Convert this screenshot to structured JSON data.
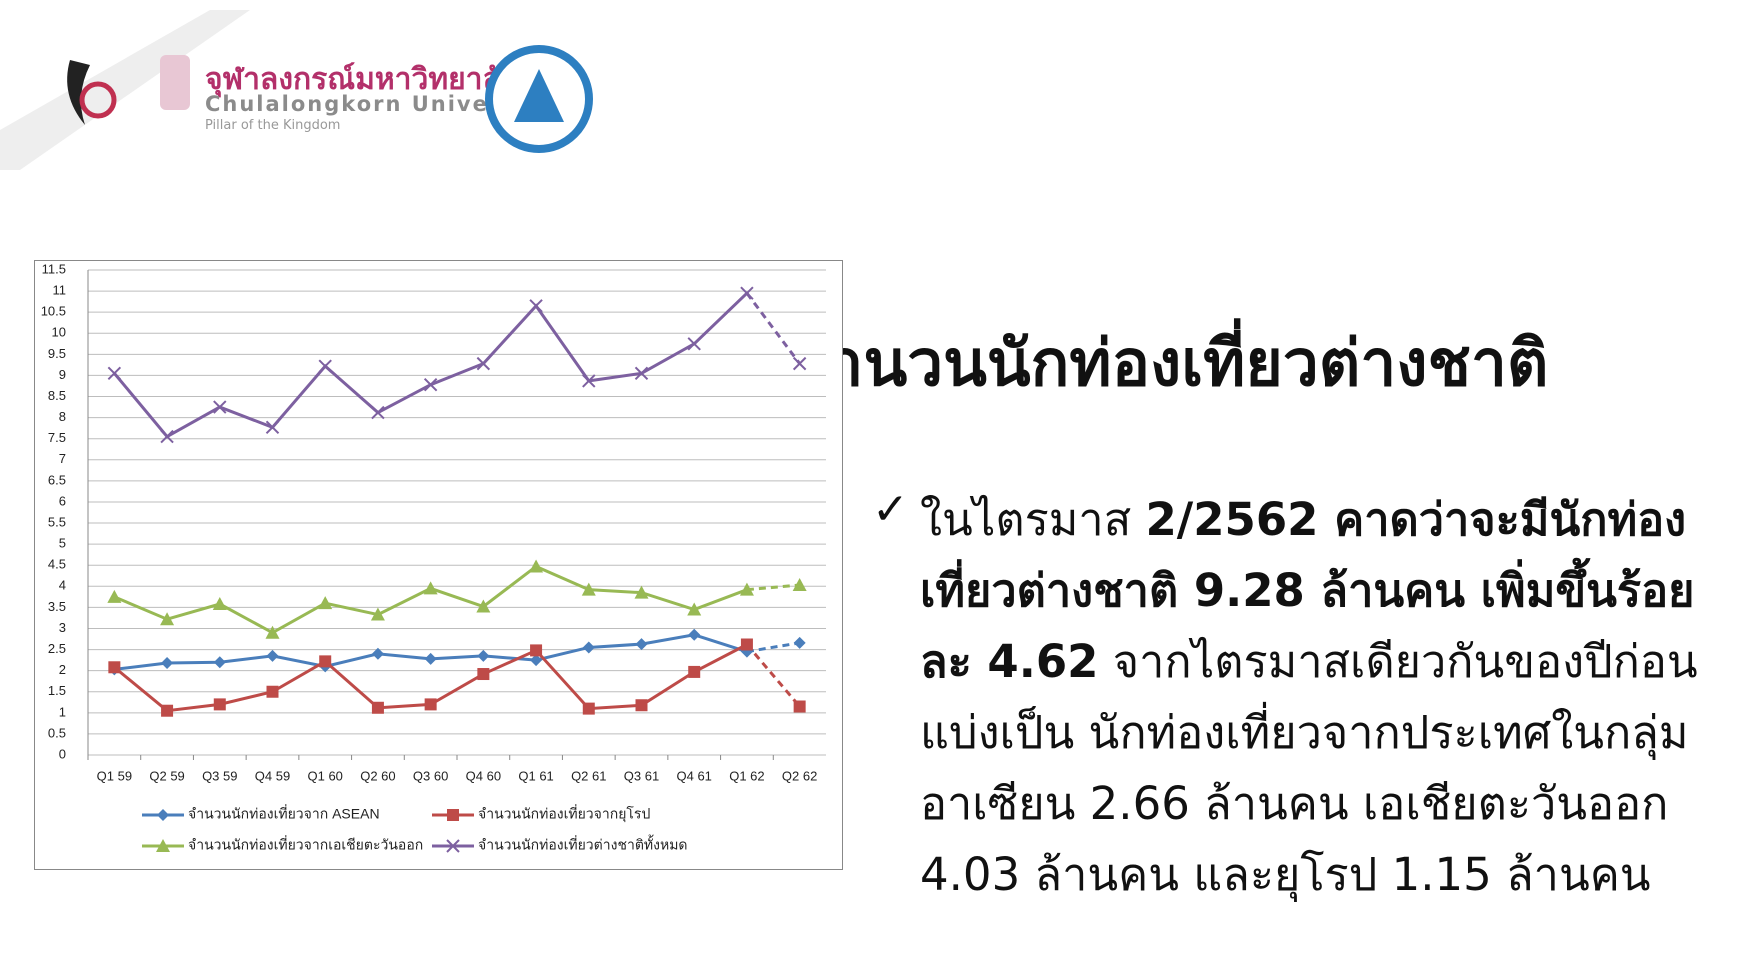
{
  "header": {
    "university_th": "จุฬาลงกรณ์มหาวิทยาลัย",
    "university_en": "Chulalongkorn University",
    "motto": "Pillar of the Kingdom"
  },
  "title": "จำนวนนักท่องเที่ยวต่างชาติ",
  "bullet": {
    "mark": "✓",
    "runs": [
      {
        "text": "ในไตรมาส ",
        "bold": false
      },
      {
        "text": "2/2562 คาดว่าจะมีนักท่องเที่ยวต่างชาติ 9.28 ล้านคน เพิ่มขึ้นร้อยละ 4.62",
        "bold": true
      },
      {
        "text": " จากไตรมาสเดียวกันของปีก่อน แบ่งเป็น นักท่องเที่ยวจากประเทศในกลุ่มอาเซียน 2.66 ล้านคน เอเชียตะวันออก 4.03 ล้านคน และยุโรป 1.15 ล้านคน",
        "bold": false
      }
    ]
  },
  "chart_data": {
    "type": "line",
    "categories": [
      "Q1 59",
      "Q2 59",
      "Q3 59",
      "Q4 59",
      "Q1 60",
      "Q2 60",
      "Q3 60",
      "Q4 60",
      "Q1 61",
      "Q2 61",
      "Q3 61",
      "Q4 61",
      "Q1 62",
      "Q2 62"
    ],
    "series": [
      {
        "name": "จำนวนนักท่องเที่ยวจาก ASEAN",
        "color": "#4a7ebb",
        "marker": "diamond",
        "values": [
          2.03,
          2.18,
          2.2,
          2.35,
          2.1,
          2.4,
          2.28,
          2.35,
          2.25,
          2.55,
          2.63,
          2.85,
          2.45,
          2.66
        ]
      },
      {
        "name": "จำนวนนักท่องเที่ยวจากยุโรป",
        "color": "#be4b48",
        "marker": "square",
        "values": [
          2.08,
          1.05,
          1.2,
          1.5,
          2.22,
          1.12,
          1.2,
          1.92,
          2.48,
          1.1,
          1.18,
          1.97,
          2.62,
          1.15
        ]
      },
      {
        "name": "จำนวนนักท่องเที่ยวจากเอเชียตะวันออก",
        "color": "#98b954",
        "marker": "triangle",
        "values": [
          3.75,
          3.22,
          3.58,
          2.9,
          3.6,
          3.33,
          3.95,
          3.52,
          4.47,
          3.92,
          3.85,
          3.45,
          3.92,
          4.03
        ]
      },
      {
        "name": "จำนวนนักท่องเที่ยวต่างชาติทั้งหมด",
        "color": "#7d60a0",
        "marker": "x",
        "values": [
          9.05,
          7.55,
          8.25,
          7.77,
          9.22,
          8.12,
          8.78,
          9.28,
          10.65,
          8.87,
          9.05,
          9.75,
          10.95,
          9.28
        ]
      }
    ],
    "last_segment_dashed": true,
    "ylim": [
      0,
      11.5
    ],
    "yticks": [
      0,
      0.5,
      1,
      1.5,
      2,
      2.5,
      3,
      3.5,
      4,
      4.5,
      5,
      5.5,
      6,
      6.5,
      7,
      7.5,
      8,
      8.5,
      9,
      9.5,
      10,
      10.5,
      11,
      11.5
    ],
    "grid": true,
    "legend": "bottom"
  }
}
